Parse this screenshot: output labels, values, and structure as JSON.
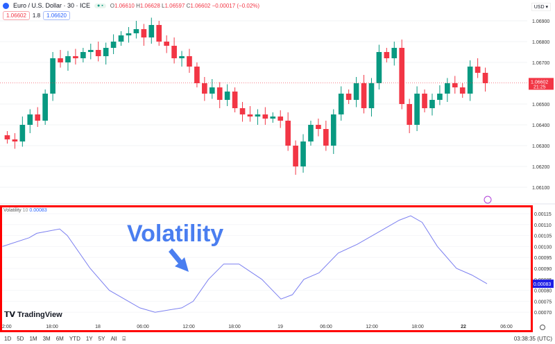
{
  "header": {
    "symbol": "Euro / U.S. Dollar · 30 · ICE",
    "O": "1.06610",
    "H": "1.06628",
    "L": "1.06597",
    "C": "1.06602",
    "change": "−0.00017 (−0.02%)",
    "bid": "1.06602",
    "spread": "1.8",
    "ask": "1.06620",
    "currency": "USD"
  },
  "price_axis": {
    "labels": [
      "1.06900",
      "1.06800",
      "1.06700",
      "1.06500",
      "1.06400",
      "1.06300",
      "1.06200",
      "1.06100"
    ],
    "last_price": "1.06602",
    "countdown": "21:25"
  },
  "indicator": {
    "name": "Volatility",
    "length": "10",
    "value": "0.00083",
    "annotation": "Volatility",
    "brand": "TradingView"
  },
  "time_axis": [
    "2:00",
    "18:00",
    "18",
    "06:00",
    "12:00",
    "18:00",
    "19",
    "06:00",
    "12:00",
    "18:00",
    "22",
    "06:00"
  ],
  "ranges": [
    "1D",
    "5D",
    "1M",
    "3M",
    "6M",
    "YTD",
    "1Y",
    "5Y",
    "All"
  ],
  "clock": "03:38:35 (UTC)",
  "colors": {
    "up": "#089981",
    "down": "#f23645",
    "volatility": "#7b7ff0",
    "frame": "#ff0000"
  },
  "chart_data": [
    {
      "type": "candlestick",
      "interval": "30",
      "price_range": [
        1.0609,
        1.0692
      ],
      "closes": [
        1.0633,
        1.0632,
        1.064,
        1.0645,
        1.0642,
        1.0655,
        1.0672,
        1.067,
        1.0673,
        1.0672,
        1.0675,
        1.0676,
        1.0673,
        1.0677,
        1.068,
        1.0683,
        1.0684,
        1.0686,
        1.0682,
        1.0688,
        1.068,
        1.0678,
        1.0672,
        1.0673,
        1.0668,
        1.066,
        1.0655,
        1.0658,
        1.0652,
        1.0656,
        1.0648,
        1.0645,
        1.0644,
        1.0645,
        1.0643,
        1.0644,
        1.0642,
        1.063,
        1.062,
        1.0632,
        1.064,
        1.0638,
        1.063,
        1.0645,
        1.0655,
        1.0652,
        1.066,
        1.0648,
        1.066,
        1.0675,
        1.0672,
        1.0677,
        1.065,
        1.064,
        1.0655,
        1.0648,
        1.0652,
        1.0655,
        1.066,
        1.0658,
        1.0655,
        1.0668,
        1.0665,
        1.066
      ]
    },
    {
      "type": "line",
      "title": "Volatility 10",
      "y_ticks": [
        "0.00115",
        "0.00110",
        "0.00105",
        "0.00100",
        "0.00095",
        "0.00090",
        "0.00085",
        "0.00080",
        "0.00075",
        "0.00070"
      ],
      "ylim": [
        0.00066,
        0.00118
      ],
      "points": [
        [
          "17 11:30",
          0.001
        ],
        [
          "17 15:00",
          0.00104
        ],
        [
          "17 16:00",
          0.00106
        ],
        [
          "17 19:00",
          0.00108
        ],
        [
          "17 20:00",
          0.00105
        ],
        [
          "17 23:00",
          0.0009
        ],
        [
          "18 01:30",
          0.0008
        ],
        [
          "18 05:30",
          0.00072
        ],
        [
          "18 07:30",
          0.0007
        ],
        [
          "18 11:00",
          0.00072
        ],
        [
          "18 12:30",
          0.00075
        ],
        [
          "18 14:30",
          0.00085
        ],
        [
          "18 16:30",
          0.00092
        ],
        [
          "18 18:30",
          0.00092
        ],
        [
          "18 21:30",
          0.00085
        ],
        [
          "19 00:00",
          0.00076
        ],
        [
          "19 01:30",
          0.00078
        ],
        [
          "19 03:00",
          0.00085
        ],
        [
          "19 05:00",
          0.00088
        ],
        [
          "19 07:30",
          0.00097
        ],
        [
          "19 10:00",
          0.00101
        ],
        [
          "19 12:30",
          0.00106
        ],
        [
          "19 15:30",
          0.00112
        ],
        [
          "19 17:00",
          0.00114
        ],
        [
          "19 18:30",
          0.00111
        ],
        [
          "19 20:30",
          0.001
        ],
        [
          "19 23:00",
          0.0009
        ],
        [
          "22 01:00",
          0.00087
        ],
        [
          "22 03:00",
          0.00083
        ]
      ]
    }
  ]
}
